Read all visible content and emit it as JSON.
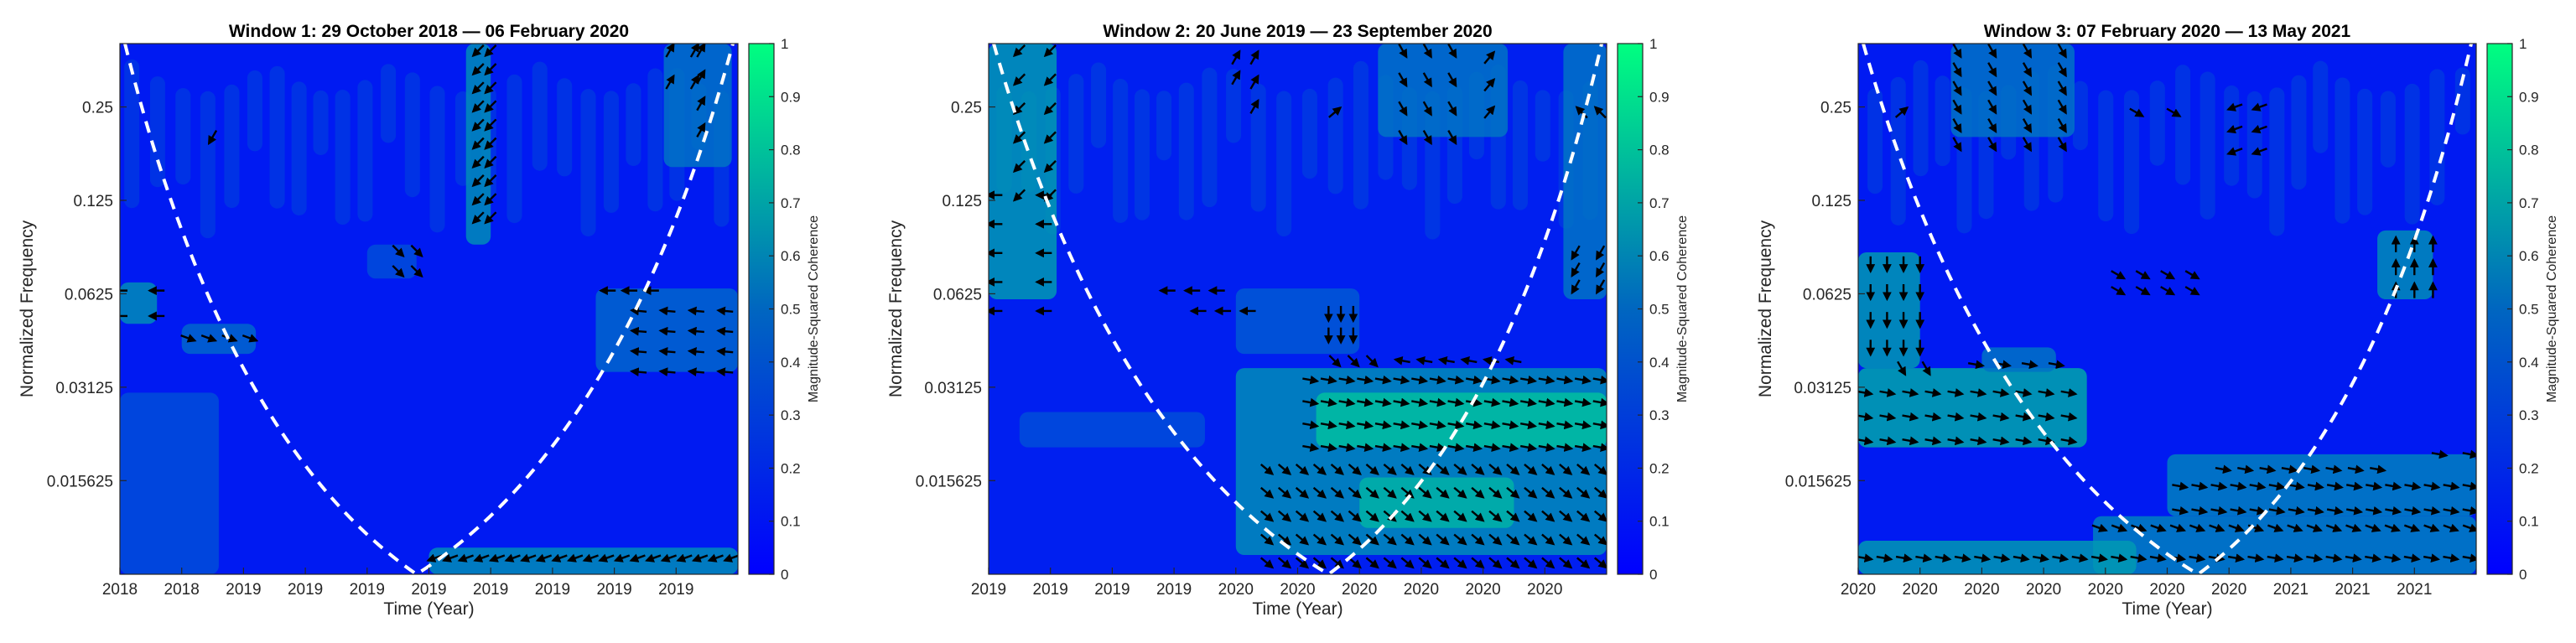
{
  "chart_data": [
    {
      "type": "heatmap",
      "title": "Window 1: 29 October 2018 — 06 February 2020",
      "xlabel": "Time (Year)",
      "ylabel": "Normalized Frequency",
      "x_tick_labels": [
        "2018",
        "2018",
        "2019",
        "2019",
        "2019",
        "2019",
        "2019",
        "2019",
        "2019",
        "2019"
      ],
      "y_tick_labels": [
        "0.25",
        "0.125",
        "0.0625",
        "0.03125",
        "0.015625"
      ],
      "y_tick_values": [
        0.25,
        0.125,
        0.0625,
        0.03125,
        0.015625
      ],
      "ylim": [
        0.0078,
        0.4
      ],
      "y_scale": "log",
      "colorbar": {
        "label": "Magnitude-Squared Coherence",
        "tick_labels": [
          "0",
          "0.1",
          "0.2",
          "0.3",
          "0.4",
          "0.5",
          "0.6",
          "0.7",
          "0.8",
          "0.9",
          "1"
        ],
        "range": [
          0,
          1
        ]
      },
      "colormap": [
        "#0000ff",
        "#00ff80"
      ],
      "background_coherence": 0.1,
      "cone_of_influence": {
        "style": "white dashed",
        "bottom_time_fraction": 0.48
      },
      "regions": [
        {
          "t": [
            0.56,
            0.6
          ],
          "f": [
            0.09,
            0.4
          ],
          "c": 0.55
        },
        {
          "t": [
            0.88,
            0.99
          ],
          "f": [
            0.16,
            0.4
          ],
          "c": 0.45
        },
        {
          "t": [
            0.0,
            0.06
          ],
          "f": [
            0.05,
            0.068
          ],
          "c": 0.55
        },
        {
          "t": [
            0.1,
            0.22
          ],
          "f": [
            0.04,
            0.05
          ],
          "c": 0.4
        },
        {
          "t": [
            0.77,
            1.0
          ],
          "f": [
            0.035,
            0.065
          ],
          "c": 0.4
        },
        {
          "t": [
            0.0,
            0.16
          ],
          "f": [
            0.0078,
            0.03
          ],
          "c": 0.3
        },
        {
          "t": [
            0.5,
            1.0
          ],
          "f": [
            0.0078,
            0.0095
          ],
          "c": 0.55
        },
        {
          "t": [
            0.4,
            0.48
          ],
          "f": [
            0.07,
            0.09
          ],
          "c": 0.3
        }
      ],
      "arrow_groups": [
        {
          "t": [
            0.58,
            0.6
          ],
          "f": [
            0.11,
            0.38
          ],
          "n_t": 2,
          "n_f": 10,
          "angle": 225
        },
        {
          "t": [
            0.89,
            0.93
          ],
          "f": [
            0.3,
            0.38
          ],
          "n_t": 2,
          "n_f": 2,
          "angle": 60
        },
        {
          "t": [
            0.94,
            0.97
          ],
          "f": [
            0.21,
            0.38
          ],
          "n_t": 1,
          "n_f": 4,
          "angle": 60
        },
        {
          "t": [
            0.15,
            0.15
          ],
          "f": [
            0.2,
            0.2
          ],
          "n_t": 1,
          "n_f": 1,
          "angle": 240
        },
        {
          "t": [
            0.45,
            0.48
          ],
          "f": [
            0.074,
            0.086
          ],
          "n_t": 2,
          "n_f": 2,
          "angle": 315
        },
        {
          "t": [
            0.0,
            0.06
          ],
          "f": [
            0.053,
            0.064
          ],
          "n_t": 2,
          "n_f": 2,
          "angle": 180
        },
        {
          "t": [
            0.11,
            0.21
          ],
          "f": [
            0.045,
            0.045
          ],
          "n_t": 4,
          "n_f": 1,
          "angle": 340
        },
        {
          "t": [
            0.79,
            0.86
          ],
          "f": [
            0.064,
            0.064
          ],
          "n_t": 3,
          "n_f": 1,
          "angle": 180
        },
        {
          "t": [
            0.84,
            0.98
          ],
          "f": [
            0.035,
            0.055
          ],
          "n_t": 4,
          "n_f": 4,
          "angle": 175
        },
        {
          "t": [
            0.51,
            0.99
          ],
          "f": [
            0.0088,
            0.0088
          ],
          "n_t": 20,
          "n_f": 1,
          "angle": 200
        }
      ]
    },
    {
      "type": "heatmap",
      "title": "Window 2: 20 June 2019 — 23 September 2020",
      "xlabel": "Time (Year)",
      "ylabel": "Normalized Frequency",
      "x_tick_labels": [
        "2019",
        "2019",
        "2019",
        "2019",
        "2020",
        "2020",
        "2020",
        "2020",
        "2020",
        "2020"
      ],
      "y_tick_labels": [
        "0.25",
        "0.125",
        "0.0625",
        "0.03125",
        "0.015625"
      ],
      "y_tick_values": [
        0.25,
        0.125,
        0.0625,
        0.03125,
        0.015625
      ],
      "ylim": [
        0.0078,
        0.4
      ],
      "y_scale": "log",
      "colorbar": {
        "label": "Magnitude-Squared Coherence",
        "tick_labels": [
          "0",
          "0.1",
          "0.2",
          "0.3",
          "0.4",
          "0.5",
          "0.6",
          "0.7",
          "0.8",
          "0.9",
          "1"
        ],
        "range": [
          0,
          1
        ]
      },
      "colormap": [
        "#0000ff",
        "#00ff80"
      ],
      "background_coherence": 0.12,
      "cone_of_influence": {
        "style": "white dashed",
        "bottom_time_fraction": 0.55
      },
      "regions": [
        {
          "t": [
            0.0,
            0.11
          ],
          "f": [
            0.06,
            0.4
          ],
          "c": 0.6
        },
        {
          "t": [
            0.4,
            1.0
          ],
          "f": [
            0.009,
            0.036
          ],
          "c": 0.55
        },
        {
          "t": [
            0.53,
            1.0
          ],
          "f": [
            0.02,
            0.03
          ],
          "c": 0.75
        },
        {
          "t": [
            0.05,
            0.35
          ],
          "f": [
            0.02,
            0.026
          ],
          "c": 0.3
        },
        {
          "t": [
            0.6,
            0.85
          ],
          "f": [
            0.011,
            0.016
          ],
          "c": 0.7
        },
        {
          "t": [
            0.4,
            0.6
          ],
          "f": [
            0.04,
            0.065
          ],
          "c": 0.35
        },
        {
          "t": [
            0.93,
            1.0
          ],
          "f": [
            0.06,
            0.4
          ],
          "c": 0.45
        },
        {
          "t": [
            0.63,
            0.84
          ],
          "f": [
            0.2,
            0.4
          ],
          "c": 0.45
        }
      ],
      "arrow_groups": [
        {
          "t": [
            0.01,
            0.09
          ],
          "f": [
            0.055,
            0.13
          ],
          "n_t": 2,
          "n_f": 5,
          "angle": 180
        },
        {
          "t": [
            0.05,
            0.1
          ],
          "f": [
            0.13,
            0.38
          ],
          "n_t": 2,
          "n_f": 6,
          "angle": 225
        },
        {
          "t": [
            0.4,
            0.42
          ],
          "f": [
            0.31,
            0.36
          ],
          "n_t": 1,
          "n_f": 2,
          "angle": 60
        },
        {
          "t": [
            0.43,
            0.45
          ],
          "f": [
            0.25,
            0.36
          ],
          "n_t": 1,
          "n_f": 3,
          "angle": 60
        },
        {
          "t": [
            0.56,
            0.58
          ],
          "f": [
            0.24,
            0.24
          ],
          "n_t": 1,
          "n_f": 1,
          "angle": 40
        },
        {
          "t": [
            0.67,
            0.75
          ],
          "f": [
            0.2,
            0.38
          ],
          "n_t": 3,
          "n_f": 4,
          "angle": 300
        },
        {
          "t": [
            0.81,
            0.82
          ],
          "f": [
            0.24,
            0.36
          ],
          "n_t": 1,
          "n_f": 3,
          "angle": 50
        },
        {
          "t": [
            0.96,
            0.99
          ],
          "f": [
            0.24,
            0.24
          ],
          "n_t": 2,
          "n_f": 1,
          "angle": 135
        },
        {
          "t": [
            0.29,
            0.37
          ],
          "f": [
            0.064,
            0.064
          ],
          "n_t": 3,
          "n_f": 1,
          "angle": 180
        },
        {
          "t": [
            0.34,
            0.42
          ],
          "f": [
            0.055,
            0.055
          ],
          "n_t": 3,
          "n_f": 1,
          "angle": 180
        },
        {
          "t": [
            0.55,
            0.59
          ],
          "f": [
            0.046,
            0.054
          ],
          "n_t": 3,
          "n_f": 2,
          "angle": 270
        },
        {
          "t": [
            0.56,
            0.62
          ],
          "f": [
            0.038,
            0.038
          ],
          "n_t": 3,
          "n_f": 1,
          "angle": 315
        },
        {
          "t": [
            0.67,
            0.85
          ],
          "f": [
            0.038,
            0.038
          ],
          "n_t": 6,
          "n_f": 1,
          "angle": 170
        },
        {
          "t": [
            0.95,
            0.99
          ],
          "f": [
            0.066,
            0.085
          ],
          "n_t": 2,
          "n_f": 3,
          "angle": 240
        },
        {
          "t": [
            0.52,
            0.99
          ],
          "f": [
            0.02,
            0.033
          ],
          "n_t": 17,
          "n_f": 4,
          "angle": 350
        },
        {
          "t": [
            0.45,
            0.99
          ],
          "f": [
            0.0085,
            0.017
          ],
          "n_t": 20,
          "n_f": 5,
          "angle": 320
        }
      ]
    },
    {
      "type": "heatmap",
      "title": "Window 3: 07 February 2020 — 13 May 2021",
      "xlabel": "Time (Year)",
      "ylabel": "Normalized Frequency",
      "x_tick_labels": [
        "2020",
        "2020",
        "2020",
        "2020",
        "2020",
        "2020",
        "2020",
        "2021",
        "2021",
        "2021"
      ],
      "y_tick_labels": [
        "0.25",
        "0.125",
        "0.0625",
        "0.03125",
        "0.015625"
      ],
      "y_tick_values": [
        0.25,
        0.125,
        0.0625,
        0.03125,
        0.015625
      ],
      "ylim": [
        0.0078,
        0.4
      ],
      "y_scale": "log",
      "colorbar": {
        "label": "Magnitude-Squared Coherence",
        "tick_labels": [
          "0",
          "0.1",
          "0.2",
          "0.3",
          "0.4",
          "0.5",
          "0.6",
          "0.7",
          "0.8",
          "0.9",
          "1"
        ],
        "range": [
          0,
          1
        ]
      },
      "colormap": [
        "#0000ff",
        "#00ff80"
      ],
      "background_coherence": 0.1,
      "cone_of_influence": {
        "style": "white dashed",
        "bottom_time_fraction": 0.55
      },
      "regions": [
        {
          "t": [
            0.0,
            0.37
          ],
          "f": [
            0.02,
            0.036
          ],
          "c": 0.65
        },
        {
          "t": [
            0.0,
            0.1
          ],
          "f": [
            0.036,
            0.085
          ],
          "c": 0.6
        },
        {
          "t": [
            0.2,
            0.32
          ],
          "f": [
            0.035,
            0.042
          ],
          "c": 0.45
        },
        {
          "t": [
            0.5,
            1.0
          ],
          "f": [
            0.012,
            0.019
          ],
          "c": 0.5
        },
        {
          "t": [
            0.38,
            1.0
          ],
          "f": [
            0.0078,
            0.012
          ],
          "c": 0.5
        },
        {
          "t": [
            0.84,
            0.93
          ],
          "f": [
            0.06,
            0.1
          ],
          "c": 0.55
        },
        {
          "t": [
            0.15,
            0.35
          ],
          "f": [
            0.2,
            0.4
          ],
          "c": 0.45
        },
        {
          "t": [
            0.0,
            0.45
          ],
          "f": [
            0.0078,
            0.01
          ],
          "c": 0.6
        }
      ],
      "arrow_groups": [
        {
          "t": [
            0.02,
            0.1
          ],
          "f": [
            0.042,
            0.078
          ],
          "n_t": 4,
          "n_f": 4,
          "angle": 270
        },
        {
          "t": [
            0.07,
            0.11
          ],
          "f": [
            0.036,
            0.036
          ],
          "n_t": 2,
          "n_f": 1,
          "angle": 300
        },
        {
          "t": [
            0.19,
            0.32
          ],
          "f": [
            0.037,
            0.037
          ],
          "n_t": 4,
          "n_f": 1,
          "angle": 350
        },
        {
          "t": [
            0.01,
            0.34
          ],
          "f": [
            0.021,
            0.03
          ],
          "n_t": 10,
          "n_f": 3,
          "angle": 350
        },
        {
          "t": [
            0.16,
            0.33
          ],
          "f": [
            0.19,
            0.38
          ],
          "n_t": 4,
          "n_f": 6,
          "angle": 300
        },
        {
          "t": [
            0.07,
            0.07
          ],
          "f": [
            0.24,
            0.24
          ],
          "n_t": 1,
          "n_f": 1,
          "angle": 40
        },
        {
          "t": [
            0.45,
            0.51
          ],
          "f": [
            0.24,
            0.24
          ],
          "n_t": 2,
          "n_f": 1,
          "angle": 330
        },
        {
          "t": [
            0.61,
            0.65
          ],
          "f": [
            0.18,
            0.25
          ],
          "n_t": 2,
          "n_f": 3,
          "angle": 200
        },
        {
          "t": [
            0.42,
            0.54
          ],
          "f": [
            0.064,
            0.072
          ],
          "n_t": 4,
          "n_f": 2,
          "angle": 330
        },
        {
          "t": [
            0.87,
            0.93
          ],
          "f": [
            0.064,
            0.09
          ],
          "n_t": 3,
          "n_f": 3,
          "angle": 90
        },
        {
          "t": [
            0.59,
            0.84
          ],
          "f": [
            0.017,
            0.017
          ],
          "n_t": 8,
          "n_f": 1,
          "angle": 350
        },
        {
          "t": [
            0.52,
            0.99
          ],
          "f": [
            0.0125,
            0.015
          ],
          "n_t": 16,
          "n_f": 2,
          "angle": 350
        },
        {
          "t": [
            0.39,
            0.99
          ],
          "f": [
            0.011,
            0.011
          ],
          "n_t": 20,
          "n_f": 1,
          "angle": 340
        },
        {
          "t": [
            0.01,
            0.99
          ],
          "f": [
            0.0088,
            0.0088
          ],
          "n_t": 32,
          "n_f": 1,
          "angle": 350
        },
        {
          "t": [
            0.94,
            0.99
          ],
          "f": [
            0.019,
            0.019
          ],
          "n_t": 2,
          "n_f": 1,
          "angle": 350
        }
      ]
    }
  ]
}
